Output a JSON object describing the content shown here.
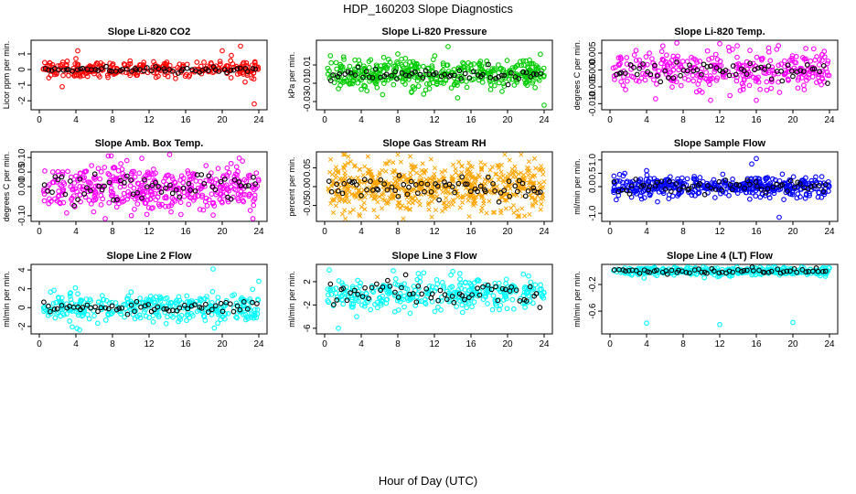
{
  "figure": {
    "title": "HDP_160203  Slope Diagnostics",
    "xlabel": "Hour of Day (UTC)"
  },
  "chart_data": [
    {
      "type": "scatter",
      "title": "Slope Li-820 CO2",
      "ylabel": "Licor ppm per min.",
      "color": "#ff0000",
      "marker": "circle",
      "xlim": [
        0,
        24
      ],
      "xticks": [
        "0",
        "4",
        "8",
        "12",
        "16",
        "20",
        "24"
      ],
      "ylim": [
        -2.4,
        1.7
      ],
      "yticks": [
        {
          "v": -2,
          "label": "-2"
        },
        {
          "v": -1,
          "label": "-1"
        },
        {
          "v": 0,
          "label": "0"
        },
        {
          "v": 1,
          "label": "1"
        }
      ],
      "base": 0,
      "spread_colored": 0.25,
      "spread_black": 0.08,
      "n_colored": 300,
      "n_black": 60,
      "outliers": [
        [
          4,
          0.7
        ],
        [
          4.2,
          1.2
        ],
        [
          2.5,
          -1.1
        ],
        [
          20,
          1.2
        ],
        [
          21,
          0.9
        ],
        [
          22,
          1.5
        ],
        [
          22.5,
          -0.8
        ],
        [
          23.5,
          -2.2
        ],
        [
          12.5,
          0.5
        ]
      ]
    },
    {
      "type": "scatter",
      "title": "Slope Li-820 Pressure",
      "ylabel": "kPa per min.",
      "color": "#00cc00",
      "marker": "circle",
      "xlim": [
        0,
        24
      ],
      "xticks": [
        "0",
        "4",
        "8",
        "12",
        "16",
        "20",
        "24"
      ],
      "ylim": [
        -0.036,
        0.034
      ],
      "yticks": [
        {
          "v": -0.03,
          "label": "-0.03"
        },
        {
          "v": -0.01,
          "label": "-0.01"
        },
        {
          "v": 0.01,
          "label": "0.01"
        }
      ],
      "base": 0,
      "spread_colored": 0.008,
      "spread_black": 0.004,
      "n_colored": 420,
      "n_black": 60,
      "outliers": [
        [
          8,
          0.022
        ],
        [
          13.5,
          0.03
        ],
        [
          24,
          -0.034
        ],
        [
          9.5,
          -0.02
        ]
      ]
    },
    {
      "type": "scatter",
      "title": "Slope Li-820 Temp.",
      "ylabel": "degrees C per min.",
      "color": "#ff00ff",
      "marker": "circle",
      "xlim": [
        0,
        24
      ],
      "xticks": [
        "0",
        "4",
        "8",
        "12",
        "16",
        "20",
        "24"
      ],
      "ylim": [
        -0.011,
        0.008
      ],
      "yticks": [
        {
          "v": -0.01,
          "label": "-0.010"
        },
        {
          "v": -0.005,
          "label": "-0.005"
        },
        {
          "v": 0,
          "label": "0.000"
        },
        {
          "v": 0.005,
          "label": "0.005"
        }
      ],
      "base": 0,
      "spread_colored": 0.003,
      "spread_black": 0.0015,
      "n_colored": 320,
      "n_black": 60,
      "outliers": [
        [
          12,
          0.0078
        ],
        [
          11,
          -0.009
        ],
        [
          16,
          -0.009
        ]
      ]
    },
    {
      "type": "scatter",
      "title": "Slope Amb. Box Temp.",
      "ylabel": "degrees C per min.",
      "color": "#ff00ff",
      "marker": "circle",
      "xlim": [
        0,
        24
      ],
      "xticks": [
        "0",
        "4",
        "8",
        "12",
        "16",
        "20",
        "24"
      ],
      "ylim": [
        -0.11,
        0.11
      ],
      "yticks": [
        {
          "v": -0.1,
          "label": "-0.10"
        },
        {
          "v": 0,
          "label": "0.00"
        },
        {
          "v": 0.05,
          "label": "0.05"
        },
        {
          "v": 0.1,
          "label": "0.10"
        }
      ],
      "base": 0,
      "spread_colored": 0.04,
      "spread_black": 0.025,
      "n_colored": 420,
      "n_black": 60,
      "outliers": []
    },
    {
      "type": "scatter",
      "title": "Slope Gas Stream RH",
      "ylabel": "percent per min.",
      "color": "#ffa500",
      "marker": "cross",
      "xlim": [
        0,
        24
      ],
      "xticks": [
        "0",
        "4",
        "8",
        "12",
        "16",
        "20",
        "24"
      ],
      "ylim": [
        -0.085,
        0.085
      ],
      "yticks": [
        {
          "v": -0.05,
          "label": "-0.05"
        },
        {
          "v": 0,
          "label": "0.00"
        },
        {
          "v": 0.05,
          "label": "0.05"
        }
      ],
      "base": 0,
      "spread_colored": 0.035,
      "spread_black": 0.015,
      "n_colored": 650,
      "n_black": 70,
      "outliers": []
    },
    {
      "type": "scatter",
      "title": "Slope Sample Flow",
      "ylabel": "ml/min per min.",
      "color": "#0000ff",
      "marker": "circle",
      "xlim": [
        0,
        24
      ],
      "xticks": [
        "0",
        "4",
        "8",
        "12",
        "16",
        "20",
        "24"
      ],
      "ylim": [
        -1.2,
        1.2
      ],
      "yticks": [
        {
          "v": -1,
          "label": "-1.0"
        },
        {
          "v": 0,
          "label": "0.0"
        },
        {
          "v": 0.5,
          "label": "0.5"
        },
        {
          "v": 1,
          "label": "1.0"
        }
      ],
      "base": 0,
      "spread_colored": 0.2,
      "spread_black": 0.15,
      "n_colored": 420,
      "n_black": 60,
      "outliers": [
        [
          18.5,
          -1.15
        ],
        [
          16,
          1.05
        ],
        [
          15.5,
          0.85
        ],
        [
          4,
          0.6
        ]
      ]
    },
    {
      "type": "scatter",
      "title": "Slope Line 2 Flow",
      "ylabel": "ml/min per min.",
      "color": "#00ffff",
      "marker": "circle",
      "xlim": [
        0,
        24
      ],
      "xticks": [
        "0",
        "4",
        "8",
        "12",
        "16",
        "20",
        "24"
      ],
      "ylim": [
        -2.5,
        4.3
      ],
      "yticks": [
        {
          "v": -2,
          "label": "-2"
        },
        {
          "v": 0,
          "label": "0"
        },
        {
          "v": 2,
          "label": "2"
        },
        {
          "v": 4,
          "label": "4"
        }
      ],
      "base": 0,
      "spread_colored": 0.8,
      "spread_black": 0.3,
      "n_colored": 330,
      "n_black": 60,
      "outliers": [
        [
          19,
          4.1
        ],
        [
          24,
          2.8
        ]
      ]
    },
    {
      "type": "scatter",
      "title": "Slope Line 3 Flow",
      "ylabel": "ml/min per min.",
      "color": "#00ffff",
      "marker": "circle",
      "xlim": [
        0,
        24
      ],
      "xticks": [
        "0",
        "4",
        "8",
        "12",
        "16",
        "20",
        "24"
      ],
      "ylim": [
        -6.5,
        4.5
      ],
      "yticks": [
        {
          "v": -6,
          "label": "-6"
        },
        {
          "v": -2,
          "label": "-2"
        },
        {
          "v": 2,
          "label": "2"
        }
      ],
      "base": 0,
      "spread_colored": 1.4,
      "spread_black": 1.1,
      "n_colored": 330,
      "n_black": 60,
      "outliers": [
        [
          1.5,
          -6
        ],
        [
          0.5,
          4
        ],
        [
          3.5,
          -4
        ]
      ]
    },
    {
      "type": "scatter",
      "title": "Slope Line 4 (LT) Flow",
      "ylabel": "ml/min per min.",
      "color": "#00ffff",
      "marker": "circle",
      "xlim": [
        0,
        24
      ],
      "xticks": [
        "0",
        "4",
        "8",
        "12",
        "16",
        "20",
        "24"
      ],
      "ylim": [
        -0.9,
        0.06
      ],
      "yticks": [
        {
          "v": -0.6,
          "label": "-0.6"
        },
        {
          "v": -0.2,
          "label": "-0.2"
        }
      ],
      "base": 0,
      "spread_colored": 0.03,
      "spread_black": 0.02,
      "n_colored": 330,
      "n_black": 60,
      "outliers": [
        [
          4,
          -0.78
        ],
        [
          12,
          -0.8
        ],
        [
          20,
          -0.77
        ]
      ]
    }
  ]
}
